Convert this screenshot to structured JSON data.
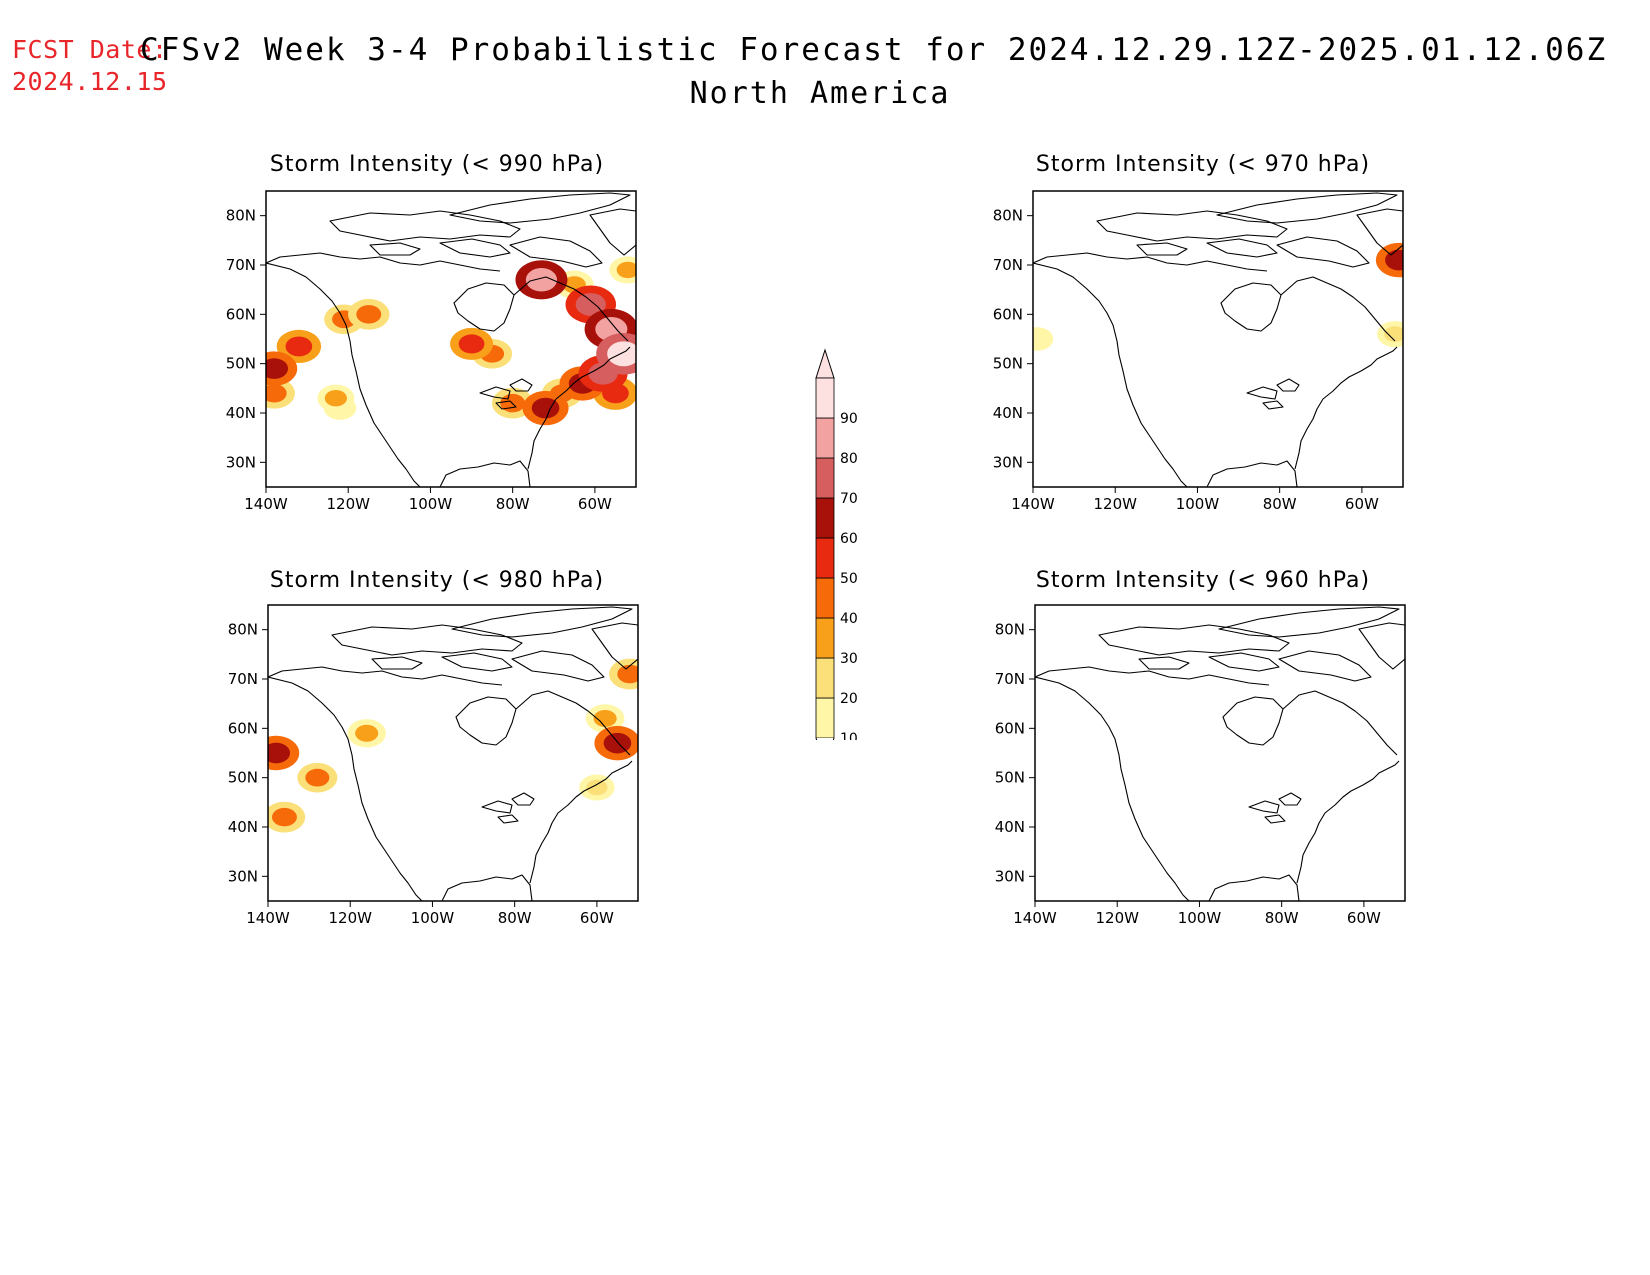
{
  "header": {
    "fcst_label": "FCST Date:",
    "fcst_date": "2024.12.15",
    "title": "CFSv2 Week 3-4 Probabilistic Forecast for 2024.12.29.12Z-2025.01.12.06Z",
    "subtitle": "North America"
  },
  "axes": {
    "lat_ticks": [
      "80N",
      "70N",
      "60N",
      "50N",
      "40N",
      "30N"
    ],
    "lon_ticks": [
      "140W",
      "120W",
      "100W",
      "80W",
      "60W"
    ]
  },
  "panels": [
    {
      "id": "p990",
      "title": "Storm Intensity (< 990 hPa)",
      "blobs": [
        {
          "lon": -132,
          "lat": 53.5,
          "val": 55
        },
        {
          "lon": -138,
          "lat": 49,
          "val": 60
        },
        {
          "lon": -138,
          "lat": 44,
          "val": 45
        },
        {
          "lon": -121,
          "lat": 59,
          "val": 40
        },
        {
          "lon": -115,
          "lat": 60,
          "val": 45
        },
        {
          "lon": -90,
          "lat": 54,
          "val": 50
        },
        {
          "lon": -85,
          "lat": 52,
          "val": 40
        },
        {
          "lon": -80,
          "lat": 42,
          "val": 45
        },
        {
          "lon": -72,
          "lat": 41,
          "val": 60
        },
        {
          "lon": -68,
          "lat": 44,
          "val": 40
        },
        {
          "lon": -63,
          "lat": 46,
          "val": 60
        },
        {
          "lon": -58,
          "lat": 48,
          "val": 70
        },
        {
          "lon": -55,
          "lat": 44,
          "val": 55
        },
        {
          "lon": -56,
          "lat": 57,
          "val": 85
        },
        {
          "lon": -61,
          "lat": 62,
          "val": 75
        },
        {
          "lon": -53,
          "lat": 52,
          "val": 90
        },
        {
          "lon": -73,
          "lat": 67,
          "val": 80
        },
        {
          "lon": -65,
          "lat": 66,
          "val": 35
        },
        {
          "lon": -52,
          "lat": 69,
          "val": 30
        },
        {
          "lon": -122,
          "lat": 41,
          "val": 15
        },
        {
          "lon": -123,
          "lat": 43,
          "val": 30
        }
      ]
    },
    {
      "id": "p970",
      "title": "Storm Intensity (< 970 hPa)",
      "blobs": [
        {
          "lon": -139,
          "lat": 55,
          "val": 15
        },
        {
          "lon": -52,
          "lat": 56,
          "val": 25
        },
        {
          "lon": -51,
          "lat": 71,
          "val": 60
        }
      ]
    },
    {
      "id": "p980",
      "title": "Storm Intensity (< 980 hPa)",
      "blobs": [
        {
          "lon": -138,
          "lat": 55,
          "val": 60
        },
        {
          "lon": -136,
          "lat": 42,
          "val": 45
        },
        {
          "lon": -128,
          "lat": 50,
          "val": 40
        },
        {
          "lon": -116,
          "lat": 59,
          "val": 35
        },
        {
          "lon": -55,
          "lat": 57,
          "val": 60
        },
        {
          "lon": -58,
          "lat": 62,
          "val": 35
        },
        {
          "lon": -60,
          "lat": 48,
          "val": 25
        },
        {
          "lon": -52,
          "lat": 71,
          "val": 45
        }
      ]
    },
    {
      "id": "p960",
      "title": "Storm Intensity (< 960 hPa)",
      "blobs": []
    }
  ],
  "colorbar": {
    "levels": [
      "10",
      "20",
      "30",
      "40",
      "50",
      "60",
      "70",
      "80",
      "90"
    ],
    "colors": [
      "#fff6a8",
      "#fbe07a",
      "#f9a01a",
      "#f66a0a",
      "#e72a10",
      "#a8100a",
      "#d65e5e",
      "#f3a2a2",
      "#fde0e0"
    ]
  }
}
